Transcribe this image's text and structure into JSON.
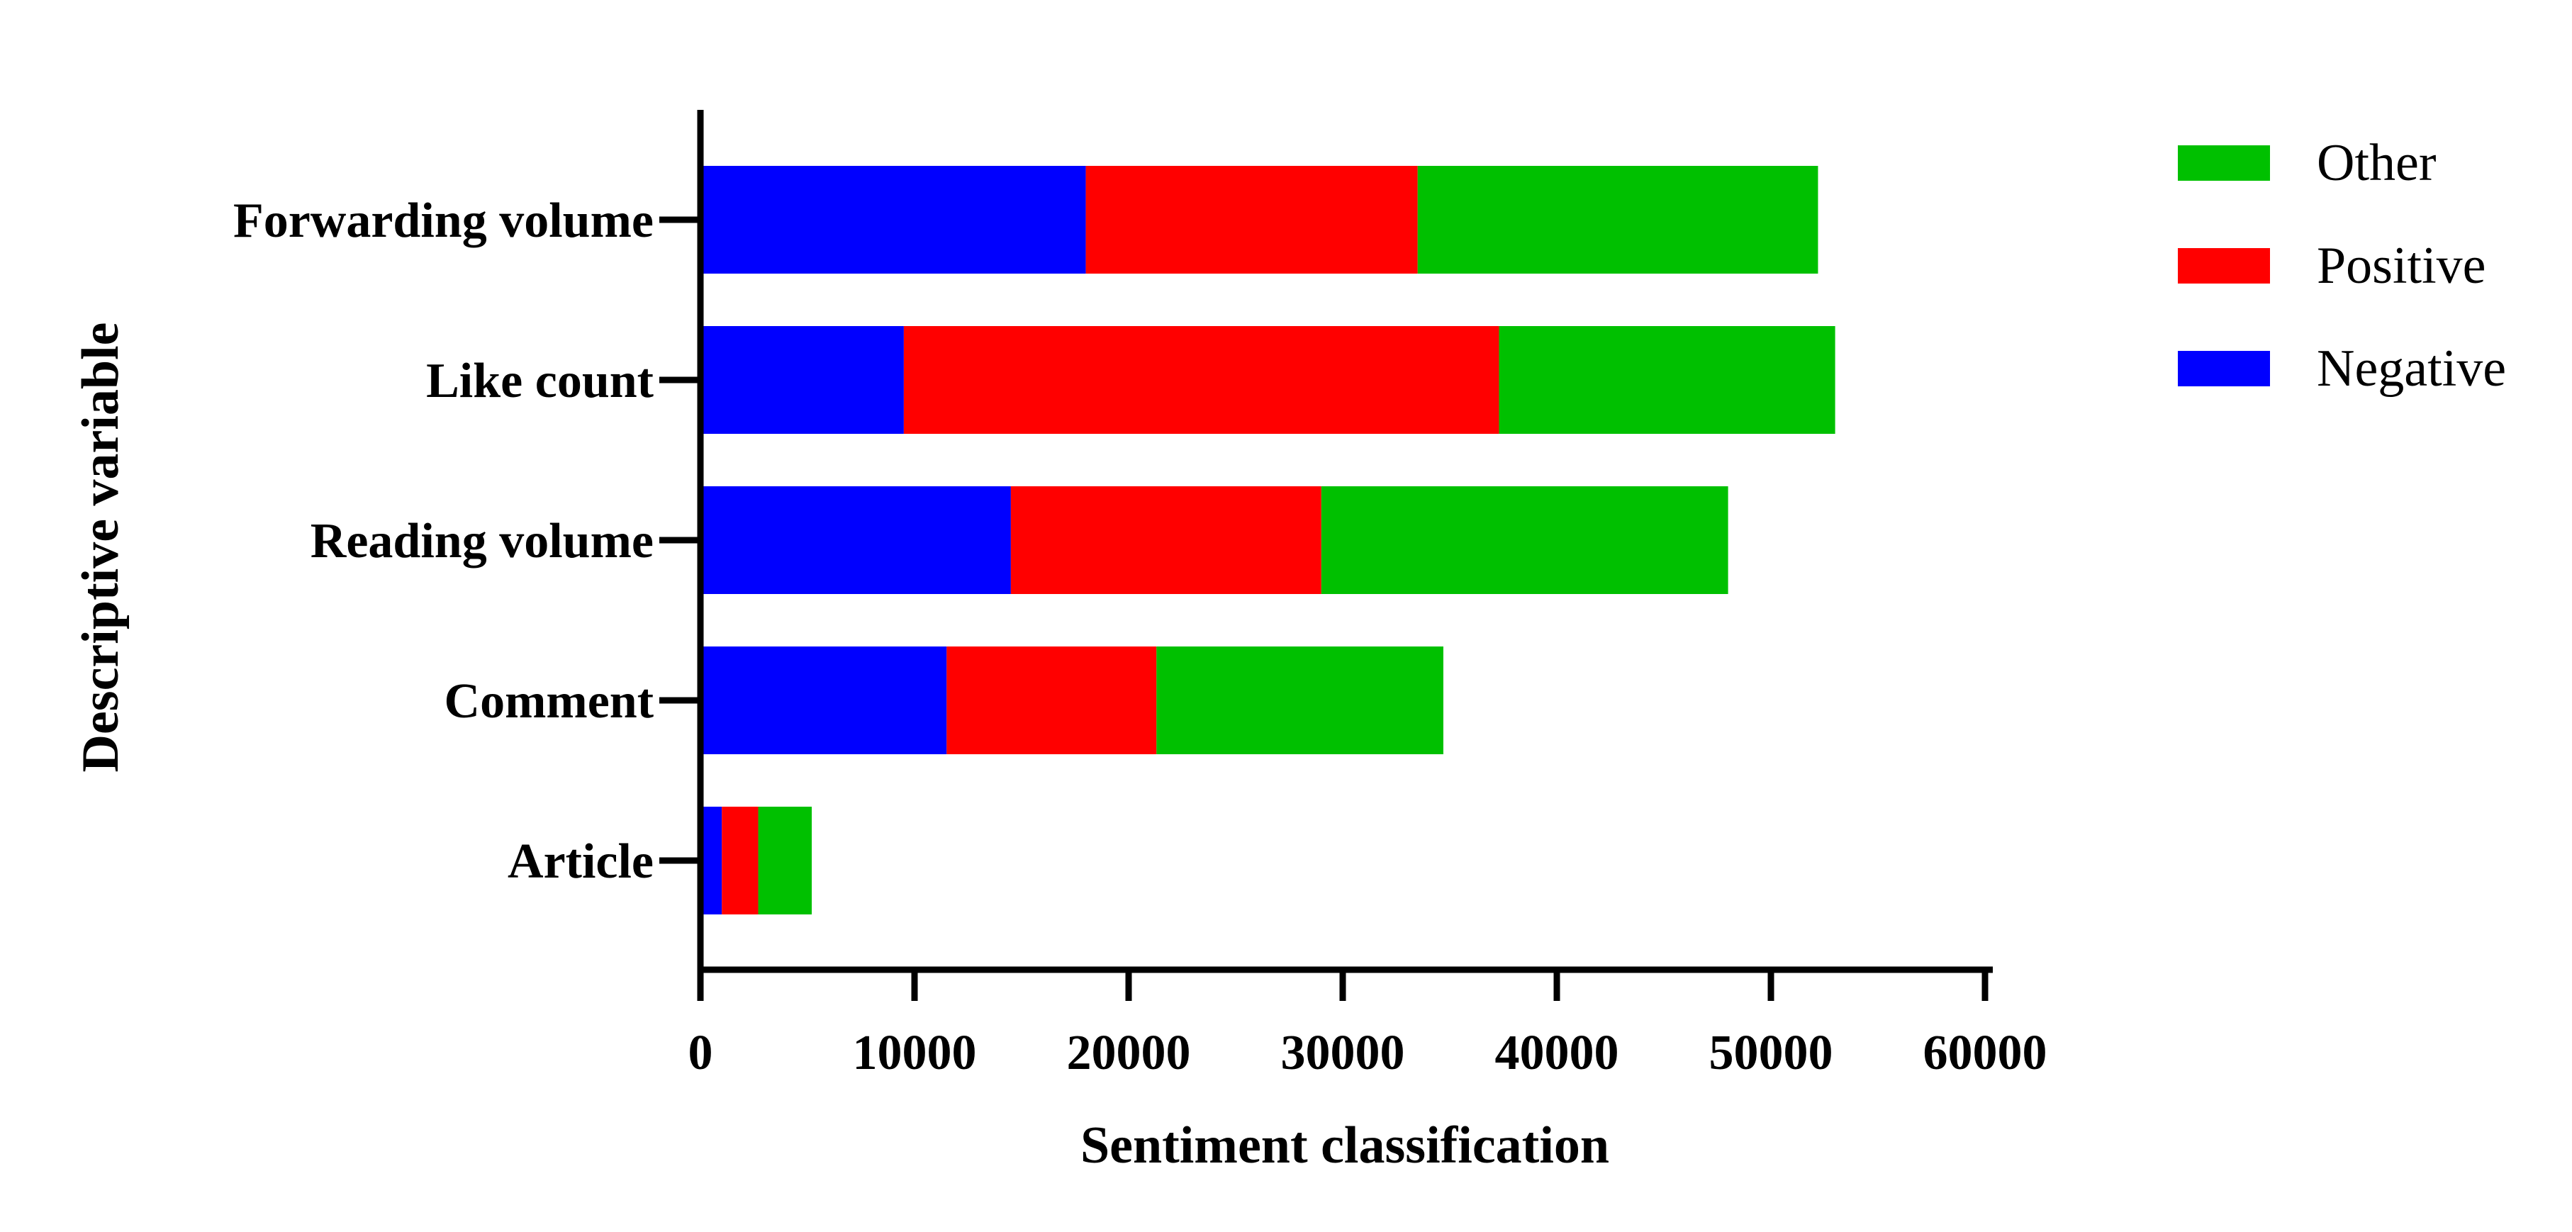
{
  "chart_data": {
    "type": "bar",
    "orientation": "horizontal",
    "stacked": true,
    "categories": [
      "Forwarding volume",
      "Like count",
      "Reading volume",
      "Comment",
      "Article"
    ],
    "series": [
      {
        "name": "Negative",
        "color": "#0000ff",
        "values": [
          18000,
          9500,
          14500,
          11500,
          1000
        ]
      },
      {
        "name": "Positive",
        "color": "#ff0000",
        "values": [
          15500,
          27800,
          14500,
          9800,
          1700
        ]
      },
      {
        "name": "Other",
        "color": "#00c000",
        "values": [
          18700,
          15700,
          19000,
          13400,
          2500
        ]
      }
    ],
    "legend_order": [
      "Other",
      "Positive",
      "Negative"
    ],
    "xlabel": "Sentiment classification",
    "ylabel": "Descriptive variable",
    "xlim": [
      0,
      60000
    ],
    "xticks": [
      0,
      10000,
      20000,
      30000,
      40000,
      50000,
      60000
    ],
    "grid": false,
    "legend_position": "top-right"
  }
}
